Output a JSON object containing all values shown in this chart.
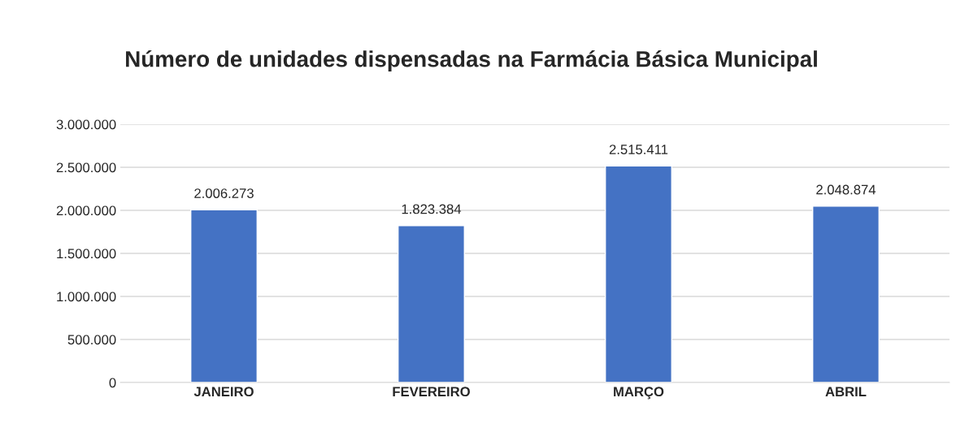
{
  "chart_data": {
    "type": "bar",
    "title": "Número de unidades dispensadas na Farmácia Básica Municipal",
    "categories": [
      "JANEIRO",
      "FEVEREIRO",
      "MARÇO",
      "ABRIL"
    ],
    "values": [
      2006273,
      1823384,
      2515411,
      2048874
    ],
    "value_labels": [
      "2.006.273",
      "1.823.384",
      "2.515.411",
      "2.048.874"
    ],
    "color": "#4472c4",
    "ylim": [
      0,
      3000000
    ],
    "yticks": [
      {
        "value": 0,
        "label": "0"
      },
      {
        "value": 500000,
        "label": "500.000"
      },
      {
        "value": 1000000,
        "label": "1.000.000"
      },
      {
        "value": 1500000,
        "label": "1.500.000"
      },
      {
        "value": 2000000,
        "label": "2.000.000"
      },
      {
        "value": 2500000,
        "label": "2.500.000"
      },
      {
        "value": 3000000,
        "label": "3.000.000"
      }
    ],
    "grid": "y",
    "legend": false
  }
}
